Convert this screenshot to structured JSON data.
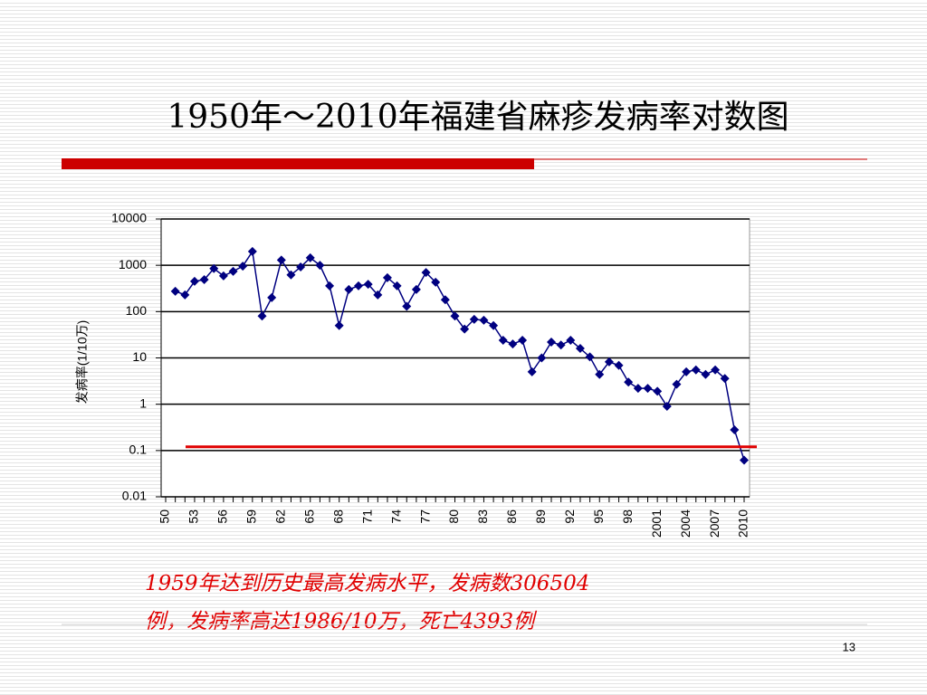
{
  "chart_data": {
    "type": "line",
    "title": "1950年～2010年福建省麻疹发病率对数图",
    "y_label": "发病率(1/10万)",
    "annotation": [
      "1959年达到历史最高发病水平，发病数306504",
      "例，发病率高达1986/10万，死亡4393例"
    ],
    "page_number": "13",
    "log_y": true,
    "grid": true,
    "categories": [
      "50",
      null,
      null,
      "53",
      null,
      null,
      "56",
      null,
      null,
      "59",
      null,
      null,
      "62",
      null,
      null,
      "65",
      null,
      null,
      "68",
      null,
      null,
      "71",
      null,
      null,
      "74",
      null,
      null,
      "77",
      null,
      null,
      "80",
      null,
      null,
      "83",
      null,
      null,
      "86",
      null,
      null,
      "89",
      null,
      null,
      "92",
      null,
      null,
      "95",
      null,
      null,
      "98",
      null,
      null,
      "2001",
      null,
      null,
      "2004",
      null,
      null,
      "2007",
      null,
      null,
      "2010"
    ],
    "series": [
      {
        "name": "发病率",
        "color": "#000080",
        "values": [
          null,
          275,
          230,
          450,
          490,
          850,
          590,
          740,
          960,
          1986,
          80,
          200,
          1300,
          620,
          920,
          1450,
          1000,
          360,
          50,
          300,
          360,
          390,
          230,
          540,
          360,
          130,
          300,
          700,
          430,
          180,
          80,
          42,
          68,
          65,
          50,
          24,
          20,
          24,
          5,
          10,
          22,
          19,
          24,
          16,
          10.5,
          4.4,
          8.2,
          6.9,
          3.0,
          2.2,
          2.2,
          1.9,
          0.9,
          2.7,
          5,
          5.5,
          4.4,
          5.5,
          3.6,
          0.28,
          0.062
        ]
      }
    ],
    "reference_line": {
      "value": 0.12,
      "color": "#e00000"
    },
    "ylim": [
      0.01,
      10000
    ],
    "yticks": [
      10000,
      1000,
      100,
      10,
      1,
      0.1,
      0.01
    ]
  }
}
